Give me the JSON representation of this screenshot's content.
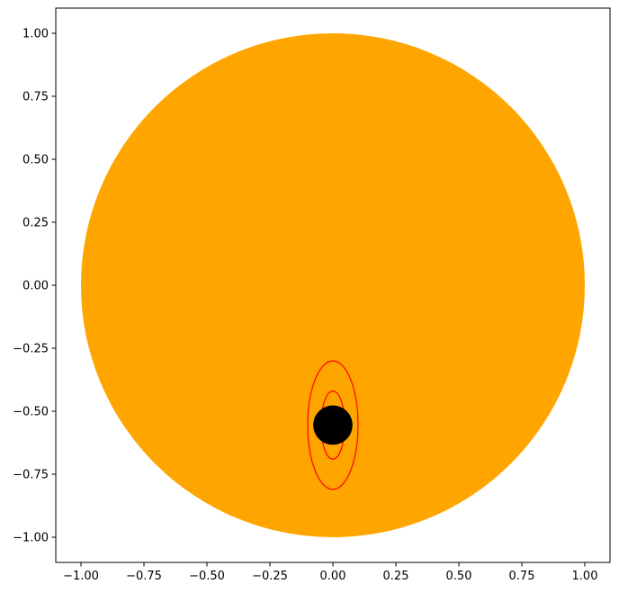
{
  "chart_data": {
    "type": "scatter",
    "title": "",
    "xlabel": "",
    "ylabel": "",
    "xlim": [
      -1.1,
      1.1
    ],
    "ylim": [
      -1.1,
      1.1
    ],
    "grid": false,
    "legend": "none",
    "x_ticks": [
      -1.0,
      -0.75,
      -0.5,
      -0.25,
      0.0,
      0.25,
      0.5,
      0.75,
      1.0
    ],
    "x_tick_labels": [
      "−1.00",
      "−0.75",
      "−0.50",
      "−0.25",
      "0.00",
      "0.25",
      "0.50",
      "0.75",
      "1.00"
    ],
    "y_ticks": [
      1.0,
      0.75,
      0.5,
      0.25,
      0.0,
      -0.25,
      -0.5,
      -0.75,
      -1.0
    ],
    "y_tick_labels": [
      "1.00",
      "0.75",
      "0.50",
      "0.25",
      "0.00",
      "−0.25",
      "−0.50",
      "−0.75",
      "−1.00"
    ],
    "shapes": [
      {
        "kind": "filled-circle",
        "name": "large-disk",
        "center": [
          0.0,
          0.0
        ],
        "radius": 1.0,
        "color": "#ffa500"
      },
      {
        "kind": "ellipse-outline",
        "name": "outer-contour",
        "center": [
          0.0,
          -0.555
        ],
        "semi_axes": [
          0.1,
          0.255
        ],
        "color": "#ff0000"
      },
      {
        "kind": "ellipse-outline",
        "name": "inner-contour",
        "center": [
          0.0,
          -0.555
        ],
        "semi_axes": [
          0.047,
          0.135
        ],
        "color": "#ff0000"
      },
      {
        "kind": "filled-circle",
        "name": "small-disk",
        "center": [
          0.0,
          -0.555
        ],
        "radius": 0.078,
        "color": "#000000"
      }
    ]
  }
}
